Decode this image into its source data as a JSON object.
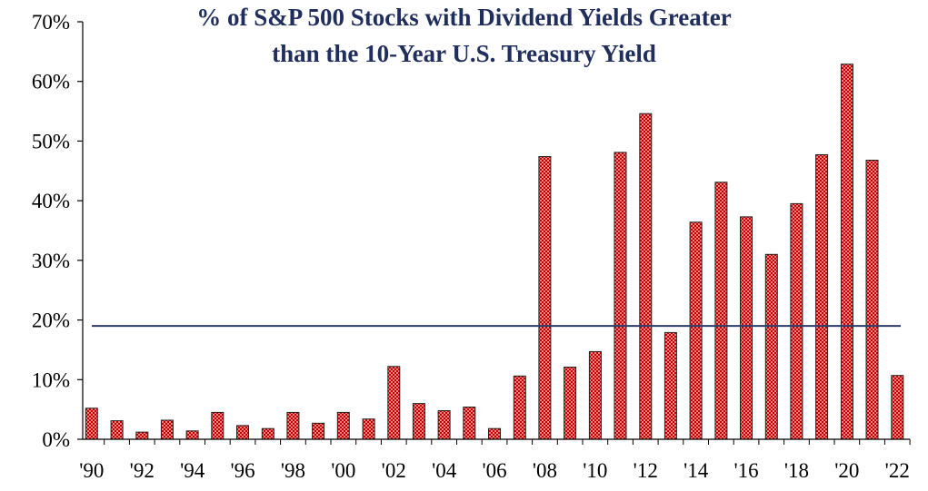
{
  "chart_data": {
    "type": "bar",
    "title_lines": [
      "% of S&P 500 Stocks with Dividend Yields Greater",
      "than the 10-Year U.S. Treasury Yield"
    ],
    "xlabel": "",
    "ylabel": "",
    "ylim": [
      0,
      70
    ],
    "y_ticks": [
      0,
      10,
      20,
      30,
      40,
      50,
      60,
      70
    ],
    "y_tick_labels": [
      "0%",
      "10%",
      "20%",
      "30%",
      "40%",
      "50%",
      "60%",
      "70%"
    ],
    "x_tick_labels": [
      "'90",
      "'92",
      "'94",
      "'96",
      "'98",
      "'00",
      "'02",
      "'04",
      "'06",
      "'08",
      "'10",
      "'12",
      "'14",
      "'16",
      "'18",
      "'20",
      "'22"
    ],
    "categories": [
      "1990",
      "1991",
      "1992",
      "1993",
      "1994",
      "1995",
      "1996",
      "1997",
      "1998",
      "1999",
      "2000",
      "2001",
      "2002",
      "2003",
      "2004",
      "2005",
      "2006",
      "2007",
      "2008",
      "2009",
      "2010",
      "2011",
      "2012",
      "2013",
      "2014",
      "2015",
      "2016",
      "2017",
      "2018",
      "2019",
      "2020",
      "2021",
      "2022"
    ],
    "values": [
      5.2,
      3.1,
      1.2,
      3.2,
      1.4,
      4.5,
      2.3,
      1.8,
      4.5,
      2.7,
      4.5,
      3.4,
      12.2,
      6.0,
      4.8,
      5.4,
      1.8,
      10.6,
      47.4,
      12.1,
      14.7,
      48.1,
      54.6,
      17.9,
      36.4,
      43.1,
      37.3,
      31.0,
      39.5,
      47.7,
      62.9,
      46.8,
      10.7
    ],
    "reference_line": {
      "value": 19.0
    },
    "grid": false,
    "legend": "none",
    "colors": {
      "bar_fill": "#f08080",
      "bar_pattern": "#c00000",
      "bar_stroke": "#222222",
      "reference_line": "#2b3e6b",
      "title": "#1f2e5c",
      "axis": "#000000"
    }
  }
}
